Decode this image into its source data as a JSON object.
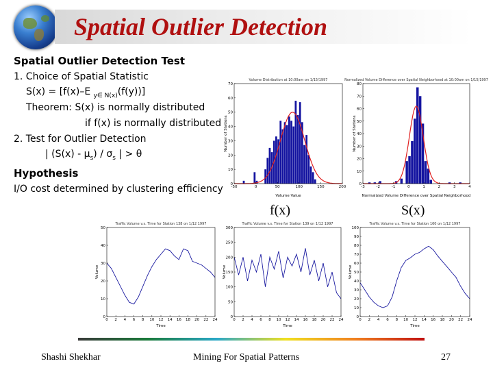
{
  "slide": {
    "title": "Spatial Outlier Detection",
    "subheading": "Spatial Outlier Detection Test",
    "lines": {
      "l1": "1. Choice of Spatial Statistic",
      "l2a": "S(x) = [f(x)–E ",
      "l2sub": "y∈ N(x)",
      "l2b": "(f(y))]",
      "l3": "Theorem: S(x) is normally distributed",
      "l4": "if f(x) is normally distributed",
      "l5": "2. Test for Outlier Detection",
      "l6a": "| (S(x) - μ",
      "l6sub1": "s",
      "l6b": ") / σ",
      "l6sub2": "s",
      "l6c": " | > θ"
    },
    "hypothesis": "Hypothesis",
    "io_cost": "I/O cost determined by clustering efficiency",
    "label_fx": "f(x)",
    "label_sx": "S(x)",
    "footer": {
      "author": "Shashi Shekhar",
      "title": "Mining For Spatial Patterns",
      "page": "27"
    },
    "colors": {
      "title": "#b01010",
      "bar": "#1414a0",
      "curve": "#e02020",
      "line": "#1a1aa0"
    }
  },
  "chart_data": [
    {
      "type": "bar",
      "title": "Volume Distribution at 10:00am on 1/15/1997",
      "xlabel": "Volume Value",
      "ylabel": "Number of Stations",
      "xlim": [
        -50,
        200
      ],
      "ylim": [
        0,
        70
      ],
      "xticks": [
        "-50",
        "0",
        "50",
        "100",
        "150",
        "200"
      ],
      "yticks": [
        "0",
        "10",
        "20",
        "30",
        "40",
        "50",
        "60",
        "70"
      ],
      "bin_width": 5,
      "bins": [
        {
          "x": -30,
          "y": 2
        },
        {
          "x": -25,
          "y": 0
        },
        {
          "x": -5,
          "y": 8
        },
        {
          "x": 0,
          "y": 2
        },
        {
          "x": 20,
          "y": 10
        },
        {
          "x": 25,
          "y": 18
        },
        {
          "x": 30,
          "y": 25
        },
        {
          "x": 35,
          "y": 22
        },
        {
          "x": 40,
          "y": 30
        },
        {
          "x": 45,
          "y": 33
        },
        {
          "x": 50,
          "y": 31
        },
        {
          "x": 55,
          "y": 44
        },
        {
          "x": 60,
          "y": 38
        },
        {
          "x": 65,
          "y": 43
        },
        {
          "x": 70,
          "y": 41
        },
        {
          "x": 75,
          "y": 47
        },
        {
          "x": 80,
          "y": 44
        },
        {
          "x": 85,
          "y": 40
        },
        {
          "x": 90,
          "y": 58
        },
        {
          "x": 95,
          "y": 48
        },
        {
          "x": 100,
          "y": 57
        },
        {
          "x": 105,
          "y": 43
        },
        {
          "x": 110,
          "y": 27
        },
        {
          "x": 115,
          "y": 34
        },
        {
          "x": 120,
          "y": 20
        },
        {
          "x": 125,
          "y": 12
        },
        {
          "x": 130,
          "y": 8
        },
        {
          "x": 135,
          "y": 3
        }
      ],
      "curve": {
        "mean": 85,
        "sd": 28,
        "peak": 50
      }
    },
    {
      "type": "bar",
      "title": "Normalized Volume Difference over Spatial Neighborhood at 10:00am on 1/15/1997",
      "xlabel": "Normalized Volume Difference over Spatial Neighborhood",
      "ylabel": "Number of Stations",
      "xlim": [
        -5,
        5
      ],
      "ylim": [
        0,
        80
      ],
      "xticks": [
        "-3",
        "-2",
        "-1",
        "0",
        "1",
        "2",
        "3",
        "4"
      ],
      "yticks": [
        "0",
        "10",
        "20",
        "30",
        "40",
        "50",
        "60",
        "70",
        "80"
      ],
      "bin_width": 0.25,
      "bins": [
        {
          "x": -4.5,
          "y": 1
        },
        {
          "x": -4.0,
          "y": 1
        },
        {
          "x": -3.5,
          "y": 2
        },
        {
          "x": -2.0,
          "y": 2
        },
        {
          "x": -1.5,
          "y": 4
        },
        {
          "x": -1.0,
          "y": 18
        },
        {
          "x": -0.75,
          "y": 22
        },
        {
          "x": -0.5,
          "y": 34
        },
        {
          "x": -0.25,
          "y": 52
        },
        {
          "x": 0.0,
          "y": 77
        },
        {
          "x": 0.25,
          "y": 70
        },
        {
          "x": 0.5,
          "y": 48
        },
        {
          "x": 0.75,
          "y": 18
        },
        {
          "x": 1.0,
          "y": 12
        },
        {
          "x": 1.25,
          "y": 3
        },
        {
          "x": 3.0,
          "y": 1
        },
        {
          "x": 4.0,
          "y": 1
        }
      ],
      "curve": {
        "mean": 0.0,
        "sd": 0.65,
        "peak": 62
      }
    },
    {
      "type": "line",
      "title": "Traffic Volume v.s. Time for Station 138 on 1/12 1997",
      "xlabel": "Time",
      "ylabel": "Volume",
      "xlim": [
        0,
        24
      ],
      "ylim": [
        0,
        50
      ],
      "xticks": [
        "0",
        "2",
        "4",
        "6",
        "8",
        "10",
        "12",
        "14",
        "16",
        "18",
        "20",
        "22",
        "24"
      ],
      "yticks": [
        "0",
        "10",
        "20",
        "30",
        "40",
        "50"
      ],
      "x": [
        0,
        1,
        2,
        3,
        4,
        5,
        6,
        7,
        8,
        9,
        10,
        11,
        12,
        13,
        14,
        15,
        16,
        17,
        18,
        19,
        20,
        21,
        22,
        23,
        24
      ],
      "y": [
        30,
        27,
        22,
        17,
        12,
        8,
        7,
        11,
        17,
        23,
        28,
        32,
        35,
        38,
        37,
        34,
        32,
        38,
        37,
        31,
        30,
        29,
        27,
        25,
        22
      ]
    },
    {
      "type": "line",
      "title": "Traffic Volume v.s. Time for Station 139 on 1/12 1997",
      "xlabel": "Time",
      "ylabel": "Volume",
      "xlim": [
        0,
        24
      ],
      "ylim": [
        0,
        300
      ],
      "xticks": [
        "0",
        "2",
        "4",
        "6",
        "8",
        "10",
        "12",
        "14",
        "16",
        "18",
        "20",
        "22",
        "24"
      ],
      "yticks": [
        "0",
        "50",
        "100",
        "150",
        "200",
        "250",
        "300"
      ],
      "x": [
        0,
        1,
        2,
        3,
        4,
        5,
        6,
        7,
        8,
        9,
        10,
        11,
        12,
        13,
        14,
        15,
        16,
        17,
        18,
        19,
        20,
        21,
        22,
        23,
        24
      ],
      "y": [
        200,
        140,
        200,
        120,
        190,
        150,
        210,
        100,
        200,
        160,
        220,
        130,
        200,
        170,
        210,
        150,
        230,
        140,
        190,
        120,
        180,
        100,
        150,
        80,
        60
      ]
    },
    {
      "type": "line",
      "title": "Traffic Volume v.s. Time for Station 160 on 1/12 1997",
      "xlabel": "Time",
      "ylabel": "Volume",
      "xlim": [
        0,
        24
      ],
      "ylim": [
        0,
        100
      ],
      "xticks": [
        "0",
        "2",
        "4",
        "6",
        "8",
        "10",
        "12",
        "14",
        "16",
        "18",
        "20",
        "22",
        "24"
      ],
      "yticks": [
        "0",
        "10",
        "20",
        "30",
        "40",
        "50",
        "60",
        "70",
        "80",
        "90",
        "100"
      ],
      "x": [
        0,
        1,
        2,
        3,
        4,
        5,
        6,
        7,
        8,
        9,
        10,
        11,
        12,
        13,
        14,
        15,
        16,
        17,
        18,
        19,
        20,
        21,
        22,
        23,
        24
      ],
      "y": [
        38,
        30,
        22,
        16,
        12,
        10,
        12,
        22,
        40,
        55,
        63,
        66,
        70,
        72,
        76,
        79,
        75,
        68,
        62,
        56,
        50,
        44,
        34,
        26,
        20
      ]
    }
  ]
}
